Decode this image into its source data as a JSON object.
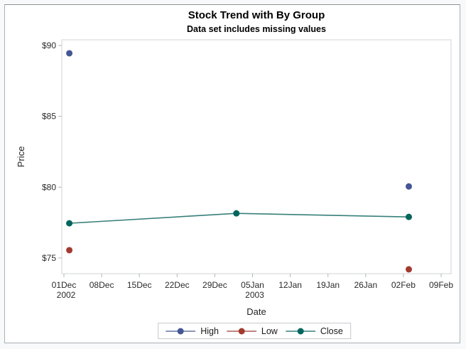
{
  "chart_data": {
    "type": "line",
    "title": "Stock Trend with By Group",
    "subtitle": "Data set includes missing values",
    "xlabel": "Date",
    "ylabel": "Price",
    "x_tick_labels": [
      {
        "label": "01Dec",
        "year": "2002"
      },
      {
        "label": "08Dec"
      },
      {
        "label": "15Dec"
      },
      {
        "label": "22Dec"
      },
      {
        "label": "29Dec"
      },
      {
        "label": "05Jan",
        "year": "2003"
      },
      {
        "label": "12Jan"
      },
      {
        "label": "19Jan"
      },
      {
        "label": "26Jan"
      },
      {
        "label": "02Feb"
      },
      {
        "label": "09Feb"
      }
    ],
    "y_ticks": [
      {
        "label": "$90",
        "value": 90
      },
      {
        "label": "$85",
        "value": 85
      },
      {
        "label": "$80",
        "value": 80
      },
      {
        "label": "$75",
        "value": 75
      }
    ],
    "ylim": [
      73.9,
      90.4
    ],
    "points": {
      "dates": [
        "02Dec2002",
        "02Jan2003",
        "03Feb2003"
      ],
      "day_offsets_from_01Dec2002": [
        1,
        32,
        64
      ]
    },
    "series": [
      {
        "name": "High",
        "marker_color": "#445694",
        "line_color": "#67749f",
        "values": [
          89.45,
          null,
          80.05
        ]
      },
      {
        "name": "Low",
        "marker_color": "#A23A2E",
        "line_color": "#ab5d53",
        "values": [
          75.55,
          null,
          74.2
        ]
      },
      {
        "name": "Close",
        "marker_color": "#01665E",
        "line_color": "#37807a",
        "values": [
          77.45,
          78.15,
          77.9
        ]
      }
    ],
    "legend_position": "bottom",
    "grid": false
  },
  "colors": {
    "frame": "#cfd3d6",
    "tick": "#b2b7ba",
    "tick_text": "#2b2b2b",
    "axis_label_text": "#222222",
    "plot_bg": "#ffffff"
  }
}
